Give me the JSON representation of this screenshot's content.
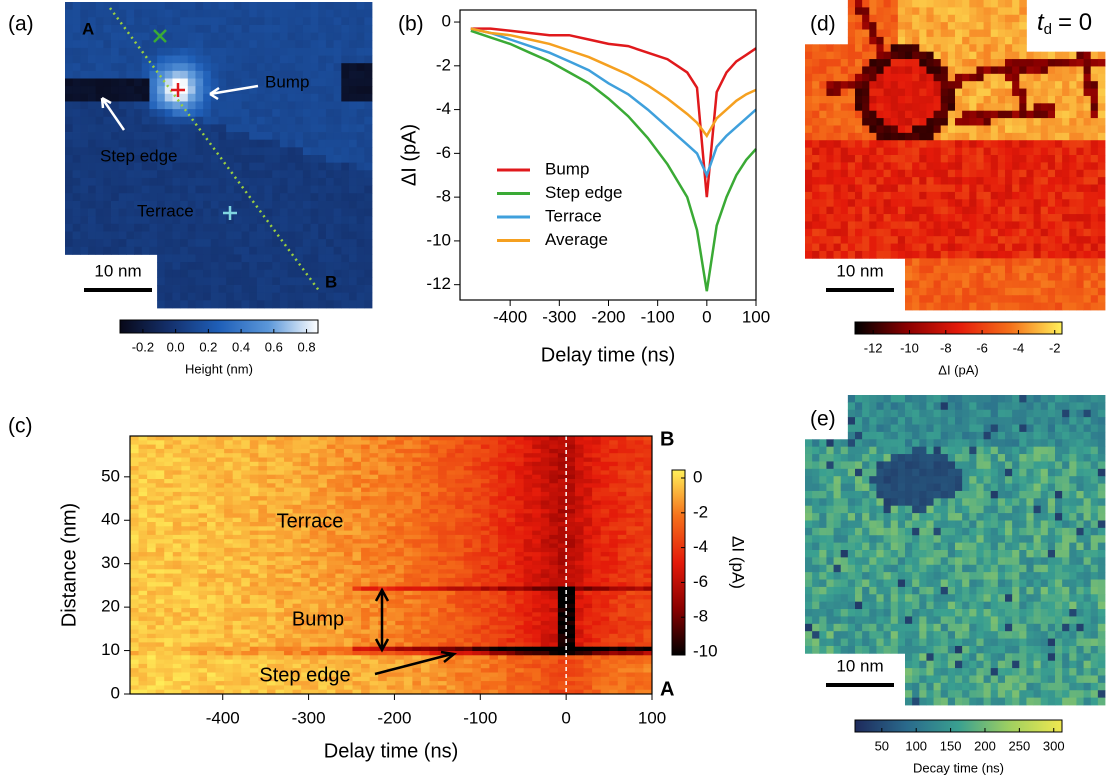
{
  "chart_data": [
    {
      "type": "image",
      "panel": "(a)",
      "annotations": [
        "A",
        "B",
        "Bump",
        "Step edge",
        "Terrace"
      ],
      "scalebar": "10 nm",
      "colorbar": {
        "label": "Height (nm)",
        "lim": [
          -0.34,
          0.87
        ],
        "ticks": [
          -0.2,
          {
            "value": 0,
            "label": "0.0"
          },
          0.2,
          0.4,
          0.6,
          0.8
        ],
        "colormap": [
          "#080818",
          "#14306c",
          "#1f5fb8",
          "#5b97d9",
          "#ffffff"
        ]
      }
    },
    {
      "type": "line",
      "panel": "(b)",
      "xlabel": "Delay time (ns)",
      "ylabel": "ΔI (pA)",
      "x": [
        -480,
        -440,
        -400,
        -360,
        -320,
        -280,
        -240,
        -200,
        -160,
        -120,
        -80,
        -40,
        -20,
        0,
        20,
        40,
        60,
        80,
        100
      ],
      "series": [
        {
          "name": "Bump",
          "color": "#e0191c",
          "values": [
            -0.3,
            -0.3,
            -0.4,
            -0.5,
            -0.6,
            -0.6,
            -0.8,
            -1.0,
            -1.1,
            -1.4,
            -1.7,
            -2.3,
            -3.0,
            -8.0,
            -3.2,
            -2.3,
            -1.8,
            -1.5,
            -1.2
          ]
        },
        {
          "name": "Step edge",
          "color": "#3aaa35",
          "values": [
            -0.4,
            -0.7,
            -1.0,
            -1.4,
            -1.8,
            -2.3,
            -2.8,
            -3.5,
            -4.3,
            -5.3,
            -6.5,
            -8.0,
            -9.5,
            -12.3,
            -9.3,
            -8.0,
            -7.0,
            -6.3,
            -5.8
          ]
        },
        {
          "name": "Terrace",
          "color": "#3fa0dc",
          "values": [
            -0.3,
            -0.5,
            -0.8,
            -1.1,
            -1.4,
            -1.8,
            -2.2,
            -2.8,
            -3.3,
            -4.0,
            -4.8,
            -5.6,
            -6.0,
            -7.0,
            -5.7,
            -5.2,
            -4.8,
            -4.4,
            -4.0
          ]
        },
        {
          "name": "Average",
          "color": "#f5a020",
          "values": [
            -0.3,
            -0.5,
            -0.6,
            -0.8,
            -1.0,
            -1.3,
            -1.6,
            -2.0,
            -2.4,
            -2.9,
            -3.5,
            -4.2,
            -4.6,
            -5.2,
            -4.4,
            -4.0,
            -3.6,
            -3.3,
            -3.1
          ]
        }
      ],
      "xlim": [
        -502,
        100
      ],
      "ylim": [
        -12.7,
        0.55
      ],
      "xticks": [
        -400,
        -300,
        -200,
        -100,
        0,
        100
      ],
      "yticks": [
        0,
        -2,
        -4,
        -6,
        -8,
        -10,
        -12
      ]
    },
    {
      "type": "heatmap",
      "panel": "(c)",
      "xlabel": "Delay time (ns)",
      "ylabel": "Distance (nm)",
      "xlim": [
        -508,
        100
      ],
      "ylim": [
        0,
        59.4
      ],
      "xticks": [
        -400,
        -300,
        -200,
        -100,
        0,
        100
      ],
      "yticks": [
        0,
        10,
        20,
        30,
        40,
        50
      ],
      "annotations": [
        "Terrace",
        "Bump",
        "Step edge"
      ],
      "ends": [
        "A",
        "B"
      ],
      "colorbar": {
        "label": "ΔI (pA)",
        "lim": [
          -10.17,
          0.46
        ],
        "ticks": [
          0,
          -2,
          -4,
          -6,
          -8,
          -10
        ],
        "colormap": [
          "#000000",
          "#8a0000",
          "#e41a0a",
          "#f5701a",
          "#fff05a"
        ]
      }
    },
    {
      "type": "image",
      "panel": "(d)",
      "time_label": {
        "symbol": "t",
        "subscript": "d",
        "rest": "= 0"
      },
      "scalebar": "10 nm",
      "colorbar": {
        "label": "ΔI (pA)",
        "lim": [
          -13,
          -1.6
        ],
        "ticks": [
          -12,
          -10,
          -8,
          -6,
          -4,
          -2
        ],
        "colormap": [
          "#000000",
          "#8a0000",
          "#e41a0a",
          "#f5701a",
          "#fff05a"
        ]
      }
    },
    {
      "type": "image",
      "panel": "(e)",
      "scalebar": "10 nm",
      "colorbar": {
        "label": "Decay time (ns)",
        "lim": [
          11,
          312
        ],
        "ticks": [
          50,
          100,
          150,
          200,
          250,
          300
        ],
        "colormap": [
          "#1e2a5c",
          "#2a6a8c",
          "#3aa090",
          "#a0d060",
          "#f0e850"
        ]
      }
    }
  ]
}
